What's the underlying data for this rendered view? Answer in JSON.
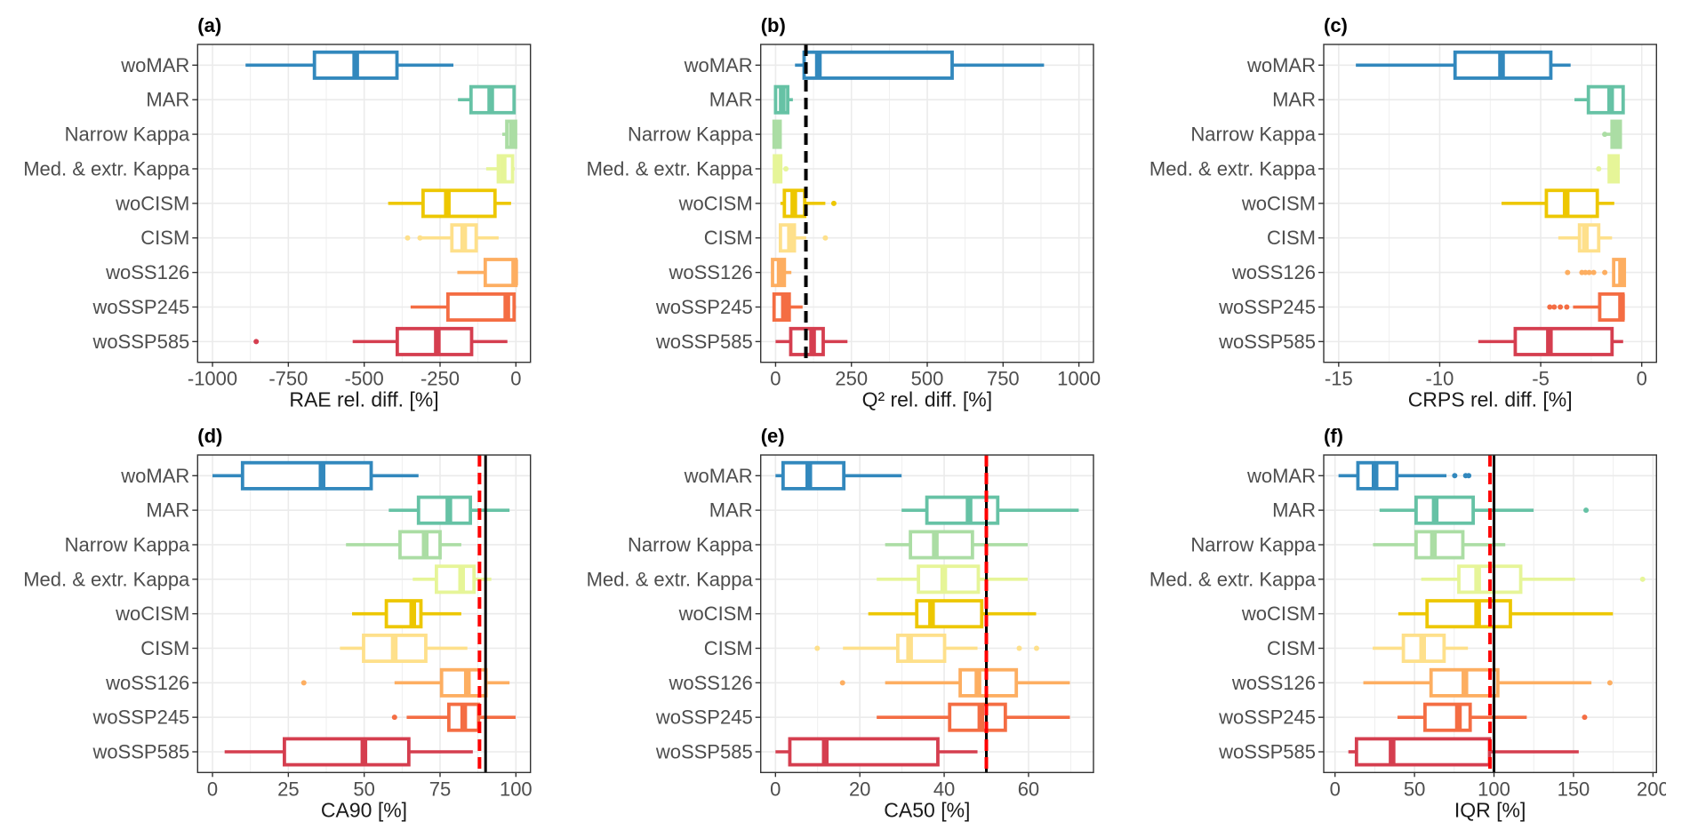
{
  "chart_data": [
    {
      "panel": "(a)",
      "type": "boxplot",
      "orientation": "horizontal",
      "title": "",
      "xlabel": "RAE rel. diff. [%]",
      "ylabel": "",
      "xlim": [
        -1049,
        48
      ],
      "xticks": [
        -1000,
        -750,
        -500,
        -250,
        0
      ],
      "minor_ticks": [
        -875,
        -625,
        -375,
        -125
      ],
      "grid": true,
      "legend": "none",
      "categories": [
        "woMAR",
        "MAR",
        "Narrow Kappa",
        "Med. & extr. Kappa",
        "woCISM",
        "CISM",
        "woSS126",
        "woSSP245",
        "woSSP585"
      ],
      "reference_lines": [],
      "series": [
        {
          "name": "woMAR",
          "color": "#3288BD",
          "whisker_low": -891,
          "q1": -664,
          "median": -528,
          "q3": -392,
          "whisker_high": -206,
          "outliers": []
        },
        {
          "name": "MAR",
          "color": "#66C2A5",
          "whisker_low": -191,
          "q1": -148,
          "median": -83,
          "q3": -6,
          "whisker_high": -1,
          "outliers": []
        },
        {
          "name": "Narrow Kappa",
          "color": "#ABDDA4",
          "whisker_low": -45,
          "q1": -30,
          "median": -12,
          "q3": -1,
          "whisker_high": 0,
          "outliers": []
        },
        {
          "name": "Med. & extr. Kappa",
          "color": "#E6F598",
          "whisker_low": -98,
          "q1": -58,
          "median": -42,
          "q3": -11,
          "whisker_high": -4,
          "outliers": []
        },
        {
          "name": "woCISM",
          "color": "#EDC700",
          "whisker_low": -421,
          "q1": -306,
          "median": -226,
          "q3": -69,
          "whisker_high": -16,
          "outliers": []
        },
        {
          "name": "CISM",
          "color": "#FEE08B",
          "whisker_low": -310,
          "q1": -211,
          "median": -172,
          "q3": -131,
          "whisker_high": -57,
          "outliers": [
            -357,
            -316
          ]
        },
        {
          "name": "woSS126",
          "color": "#FDAE61",
          "whisker_low": -193,
          "q1": -101,
          "median": -4,
          "q3": 0,
          "whisker_high": 0,
          "outliers": []
        },
        {
          "name": "woSSP245",
          "color": "#F46D43",
          "whisker_low": -347,
          "q1": -224,
          "median": -30,
          "q3": -6,
          "whisker_high": 0,
          "outliers": []
        },
        {
          "name": "woSSP585",
          "color": "#D53E4F",
          "whisker_low": -538,
          "q1": -391,
          "median": -259,
          "q3": -146,
          "whisker_high": -28,
          "outliers": [
            -856
          ]
        }
      ]
    },
    {
      "panel": "(b)",
      "type": "boxplot",
      "orientation": "horizontal",
      "title": "",
      "xlabel": "Q² rel. diff. [%]",
      "ylabel": "",
      "xlim": [
        -49,
        1048
      ],
      "xticks": [
        0,
        250,
        500,
        750,
        1000
      ],
      "minor_ticks": [
        125,
        375,
        625,
        875
      ],
      "grid": true,
      "legend": "none",
      "categories": [
        "woMAR",
        "MAR",
        "Narrow Kappa",
        "Med. & extr. Kappa",
        "woCISM",
        "CISM",
        "woSS126",
        "woSSP245",
        "woSSP585"
      ],
      "reference_lines": [
        {
          "value": 100,
          "color": "#000000",
          "style": "dashed"
        }
      ],
      "series": [
        {
          "name": "woMAR",
          "color": "#3288BD",
          "whisker_low": 64,
          "q1": 94,
          "median": 141,
          "q3": 582,
          "whisker_high": 885,
          "outliers": []
        },
        {
          "name": "MAR",
          "color": "#66C2A5",
          "whisker_low": 0,
          "q1": 0,
          "median": 22,
          "q3": 40,
          "whisker_high": 57,
          "outliers": []
        },
        {
          "name": "Narrow Kappa",
          "color": "#ABDDA4",
          "whisker_low": -5,
          "q1": -5,
          "median": 8,
          "q3": 15,
          "whisker_high": 18,
          "outliers": []
        },
        {
          "name": "Med. & extr. Kappa",
          "color": "#E6F598",
          "whisker_low": -4,
          "q1": -4,
          "median": 8,
          "q3": 17,
          "whisker_high": 18,
          "outliers": [
            34
          ]
        },
        {
          "name": "woCISM",
          "color": "#EDC700",
          "whisker_low": 16,
          "q1": 29,
          "median": 60,
          "q3": 96,
          "whisker_high": 164,
          "outliers": [
            192
          ]
        },
        {
          "name": "CISM",
          "color": "#FEE08B",
          "whisker_low": 13,
          "q1": 16,
          "median": 49,
          "q3": 62,
          "whisker_high": 101,
          "outliers": [
            164
          ]
        },
        {
          "name": "woSS126",
          "color": "#FDAE61",
          "whisker_low": -10,
          "q1": -10,
          "median": 15,
          "q3": 29,
          "whisker_high": 52,
          "outliers": []
        },
        {
          "name": "woSSP245",
          "color": "#F46D43",
          "whisker_low": -5,
          "q1": -5,
          "median": 29,
          "q3": 45,
          "whisker_high": 89,
          "outliers": []
        },
        {
          "name": "woSSP585",
          "color": "#D53E4F",
          "whisker_low": 0,
          "q1": 50,
          "median": 122,
          "q3": 157,
          "whisker_high": 237,
          "outliers": []
        }
      ]
    },
    {
      "panel": "(c)",
      "type": "boxplot",
      "orientation": "horizontal",
      "title": "",
      "xlabel": "CRPS rel. diff. [%]",
      "ylabel": "",
      "xlim": [
        -15.74,
        0.73
      ],
      "xticks": [
        -15,
        -10,
        -5,
        0
      ],
      "minor_ticks": [
        -12.5,
        -7.5,
        -2.5
      ],
      "grid": true,
      "legend": "none",
      "categories": [
        "woMAR",
        "MAR",
        "Narrow Kappa",
        "Med. & extr. Kappa",
        "woCISM",
        "CISM",
        "woSS126",
        "woSSP245",
        "woSSP585"
      ],
      "reference_lines": [],
      "series": [
        {
          "name": "woMAR",
          "color": "#3288BD",
          "whisker_low": -14.15,
          "q1": -9.24,
          "median": -6.94,
          "q3": -4.5,
          "whisker_high": -3.52,
          "outliers": []
        },
        {
          "name": "MAR",
          "color": "#66C2A5",
          "whisker_low": -3.33,
          "q1": -2.64,
          "median": -1.54,
          "q3": -0.92,
          "whisker_high": -0.88,
          "outliers": []
        },
        {
          "name": "Narrow Kappa",
          "color": "#ABDDA4",
          "whisker_low": -1.75,
          "q1": -1.47,
          "median": -1.25,
          "q3": -1.06,
          "whisker_high": -0.98,
          "outliers": [
            -1.83
          ]
        },
        {
          "name": "Med. & extr. Kappa",
          "color": "#E6F598",
          "whisker_low": -1.69,
          "q1": -1.61,
          "median": -1.4,
          "q3": -1.17,
          "whisker_high": -1.17,
          "outliers": [
            -2.13
          ]
        },
        {
          "name": "woCISM",
          "color": "#EDC700",
          "whisker_low": -6.94,
          "q1": -4.72,
          "median": -3.74,
          "q3": -2.2,
          "whisker_high": -1.36,
          "outliers": []
        },
        {
          "name": "CISM",
          "color": "#FEE08B",
          "whisker_low": -4.13,
          "q1": -3.08,
          "median": -2.79,
          "q3": -2.13,
          "whisker_high": -1.47,
          "outliers": []
        },
        {
          "name": "woSS126",
          "color": "#FDAE61",
          "whisker_low": -1.39,
          "q1": -1.39,
          "median": -1.0,
          "q3": -0.86,
          "whisker_high": -0.86,
          "outliers": [
            -3.67,
            -2.96,
            -2.79,
            -2.6,
            -2.38,
            -1.83
          ]
        },
        {
          "name": "woSSP245",
          "color": "#F46D43",
          "whisker_low": -3.4,
          "q1": -2.08,
          "median": -1.0,
          "q3": -0.93,
          "whisker_high": -0.93,
          "outliers": [
            -4.55,
            -4.33,
            -4.03,
            -3.71
          ]
        },
        {
          "name": "woSSP585",
          "color": "#D53E4F",
          "whisker_low": -8.09,
          "q1": -6.26,
          "median": -4.57,
          "q3": -1.47,
          "whisker_high": -0.92,
          "outliers": []
        }
      ]
    },
    {
      "panel": "(d)",
      "type": "boxplot",
      "orientation": "horizontal",
      "title": "",
      "xlabel": "CA90 [%]",
      "ylabel": "",
      "xlim": [
        -4.9,
        104.8
      ],
      "xticks": [
        0,
        25,
        50,
        75,
        100
      ],
      "minor_ticks": [
        12.5,
        37.5,
        62.5,
        87.5
      ],
      "grid": true,
      "legend": "none",
      "categories": [
        "woMAR",
        "MAR",
        "Narrow Kappa",
        "Med. & extr. Kappa",
        "woCISM",
        "CISM",
        "woSS126",
        "woSSP245",
        "woSSP585"
      ],
      "reference_lines": [
        {
          "value": 90,
          "color": "#000000",
          "style": "solid"
        },
        {
          "value": 88,
          "color": "#FF0000",
          "style": "dashed"
        }
      ],
      "series": [
        {
          "name": "woMAR",
          "color": "#3288BD",
          "whisker_low": 0,
          "q1": 9.9,
          "median": 36.1,
          "q3": 52.3,
          "whisker_high": 67.9,
          "outliers": []
        },
        {
          "name": "MAR",
          "color": "#66C2A5",
          "whisker_low": 58.1,
          "q1": 67.9,
          "median": 77.9,
          "q3": 85,
          "whisker_high": 97.9,
          "outliers": []
        },
        {
          "name": "Narrow Kappa",
          "color": "#ABDDA4",
          "whisker_low": 44,
          "q1": 61.8,
          "median": 70.1,
          "q3": 75,
          "whisker_high": 82,
          "outliers": []
        },
        {
          "name": "Med. & extr. Kappa",
          "color": "#E6F598",
          "whisker_low": 66,
          "q1": 73.8,
          "median": 82.1,
          "q3": 86.2,
          "whisker_high": 91.9,
          "outliers": []
        },
        {
          "name": "woCISM",
          "color": "#EDC700",
          "whisker_low": 46,
          "q1": 57.3,
          "median": 66,
          "q3": 68.7,
          "whisker_high": 82,
          "outliers": []
        },
        {
          "name": "CISM",
          "color": "#FEE08B",
          "whisker_low": 42,
          "q1": 49.8,
          "median": 59.9,
          "q3": 70.3,
          "whisker_high": 84,
          "outliers": []
        },
        {
          "name": "woSS126",
          "color": "#FDAE61",
          "whisker_low": 60,
          "q1": 75.5,
          "median": 84,
          "q3": 90.1,
          "whisker_high": 97.9,
          "outliers": [
            30.1
          ]
        },
        {
          "name": "woSSP245",
          "color": "#F46D43",
          "whisker_low": 64,
          "q1": 77.9,
          "median": 82.8,
          "q3": 87.7,
          "whisker_high": 99.9,
          "outliers": [
            60
          ]
        },
        {
          "name": "woSSP585",
          "color": "#D53E4F",
          "whisker_low": 4,
          "q1": 23.7,
          "median": 49.9,
          "q3": 64.7,
          "whisker_high": 85.8,
          "outliers": []
        }
      ]
    },
    {
      "panel": "(e)",
      "type": "boxplot",
      "orientation": "horizontal",
      "title": "",
      "xlabel": "CA50 [%]",
      "ylabel": "",
      "xlim": [
        -3.5,
        75.4
      ],
      "xticks": [
        0,
        20,
        40,
        60
      ],
      "minor_ticks": [
        10,
        30,
        50,
        70
      ],
      "grid": true,
      "legend": "none",
      "categories": [
        "woMAR",
        "MAR",
        "Narrow Kappa",
        "Med. & extr. Kappa",
        "woCISM",
        "CISM",
        "woSS126",
        "woSSP245",
        "woSSP585"
      ],
      "reference_lines": [
        {
          "value": 50,
          "color": "#000000",
          "style": "solid"
        },
        {
          "value": 50,
          "color": "#FF0000",
          "style": "dashed"
        }
      ],
      "series": [
        {
          "name": "woMAR",
          "color": "#3288BD",
          "whisker_low": 0,
          "q1": 1.8,
          "median": 7.9,
          "q3": 16.2,
          "whisker_high": 29.9,
          "outliers": []
        },
        {
          "name": "MAR",
          "color": "#66C2A5",
          "whisker_low": 29.9,
          "q1": 35.9,
          "median": 45.9,
          "q3": 52.7,
          "whisker_high": 71.9,
          "outliers": []
        },
        {
          "name": "Narrow Kappa",
          "color": "#ABDDA4",
          "whisker_low": 26,
          "q1": 32,
          "median": 37.9,
          "q3": 46.7,
          "whisker_high": 59.8,
          "outliers": []
        },
        {
          "name": "Med. & extr. Kappa",
          "color": "#E6F598",
          "whisker_low": 24,
          "q1": 33.9,
          "median": 39.9,
          "q3": 48.1,
          "whisker_high": 59.8,
          "outliers": []
        },
        {
          "name": "woCISM",
          "color": "#EDC700",
          "whisker_low": 22,
          "q1": 33.5,
          "median": 37,
          "q3": 48.9,
          "whisker_high": 61.8,
          "outliers": []
        },
        {
          "name": "CISM",
          "color": "#FEE08B",
          "whisker_low": 16,
          "q1": 29,
          "median": 31.8,
          "q3": 40.1,
          "whisker_high": 47.9,
          "outliers": [
            9.9,
            57.8,
            61.9
          ]
        },
        {
          "name": "woSS126",
          "color": "#FDAE61",
          "whisker_low": 26,
          "q1": 43.8,
          "median": 48,
          "q3": 57.1,
          "whisker_high": 69.8,
          "outliers": [
            15.9
          ]
        },
        {
          "name": "woSSP245",
          "color": "#F46D43",
          "whisker_low": 24,
          "q1": 41.3,
          "median": 48.7,
          "q3": 54.5,
          "whisker_high": 69.8,
          "outliers": []
        },
        {
          "name": "woSSP585",
          "color": "#D53E4F",
          "whisker_low": 0,
          "q1": 3.4,
          "median": 11.8,
          "q3": 38.5,
          "whisker_high": 47.9,
          "outliers": []
        }
      ]
    },
    {
      "panel": "(f)",
      "type": "boxplot",
      "orientation": "horizontal",
      "title": "",
      "xlabel": "IQR [%]",
      "ylabel": "",
      "xlim": [
        -7.1,
        202.2
      ],
      "xticks": [
        0,
        50,
        100,
        150,
        200
      ],
      "minor_ticks": [
        25,
        75,
        125,
        175
      ],
      "grid": true,
      "legend": "none",
      "categories": [
        "woMAR",
        "MAR",
        "Narrow Kappa",
        "Med. & extr. Kappa",
        "woCISM",
        "CISM",
        "woSS126",
        "woSSP245",
        "woSSP585"
      ],
      "reference_lines": [
        {
          "value": 100,
          "color": "#000000",
          "style": "solid"
        },
        {
          "value": 97.5,
          "color": "#FF0000",
          "style": "dashed"
        }
      ],
      "series": [
        {
          "name": "woMAR",
          "color": "#3288BD",
          "whisker_low": 2.2,
          "q1": 14.4,
          "median": 25.2,
          "q3": 38.9,
          "whisker_high": 70.1,
          "outliers": [
            75.3,
            82.2,
            84.1
          ]
        },
        {
          "name": "MAR",
          "color": "#66C2A5",
          "whisker_low": 28,
          "q1": 51,
          "median": 63,
          "q3": 86.9,
          "whisker_high": 124.9,
          "outliers": [
            157.9
          ]
        },
        {
          "name": "Narrow Kappa",
          "color": "#ABDDA4",
          "whisker_low": 23.9,
          "q1": 51,
          "median": 61.9,
          "q3": 80.4,
          "whisker_high": 107.1,
          "outliers": []
        },
        {
          "name": "Med. & extr. Kappa",
          "color": "#E6F598",
          "whisker_low": 54.2,
          "q1": 77.9,
          "median": 89.7,
          "q3": 116.8,
          "whisker_high": 151,
          "outliers": [
            193.5
          ]
        },
        {
          "name": "woCISM",
          "color": "#EDC700",
          "whisker_low": 39.8,
          "q1": 57.9,
          "median": 89.7,
          "q3": 110.3,
          "whisker_high": 174.8,
          "outliers": []
        },
        {
          "name": "CISM",
          "color": "#FEE08B",
          "whisker_low": 23.7,
          "q1": 43,
          "median": 55.1,
          "q3": 68.6,
          "whisker_high": 83.6,
          "outliers": []
        },
        {
          "name": "woSS126",
          "color": "#FDAE61",
          "whisker_low": 17.8,
          "q1": 60.4,
          "median": 81.7,
          "q3": 102.4,
          "whisker_high": 161.3,
          "outliers": [
            172.9
          ]
        },
        {
          "name": "woSSP245",
          "color": "#F46D43",
          "whisker_low": 39.3,
          "q1": 56.6,
          "median": 77.6,
          "q3": 85,
          "whisker_high": 120.6,
          "outliers": [
            157
          ]
        },
        {
          "name": "woSSP585",
          "color": "#D53E4F",
          "whisker_low": 8.4,
          "q1": 13.5,
          "median": 35.9,
          "q3": 97.2,
          "whisker_high": 153.3,
          "outliers": []
        }
      ]
    }
  ]
}
